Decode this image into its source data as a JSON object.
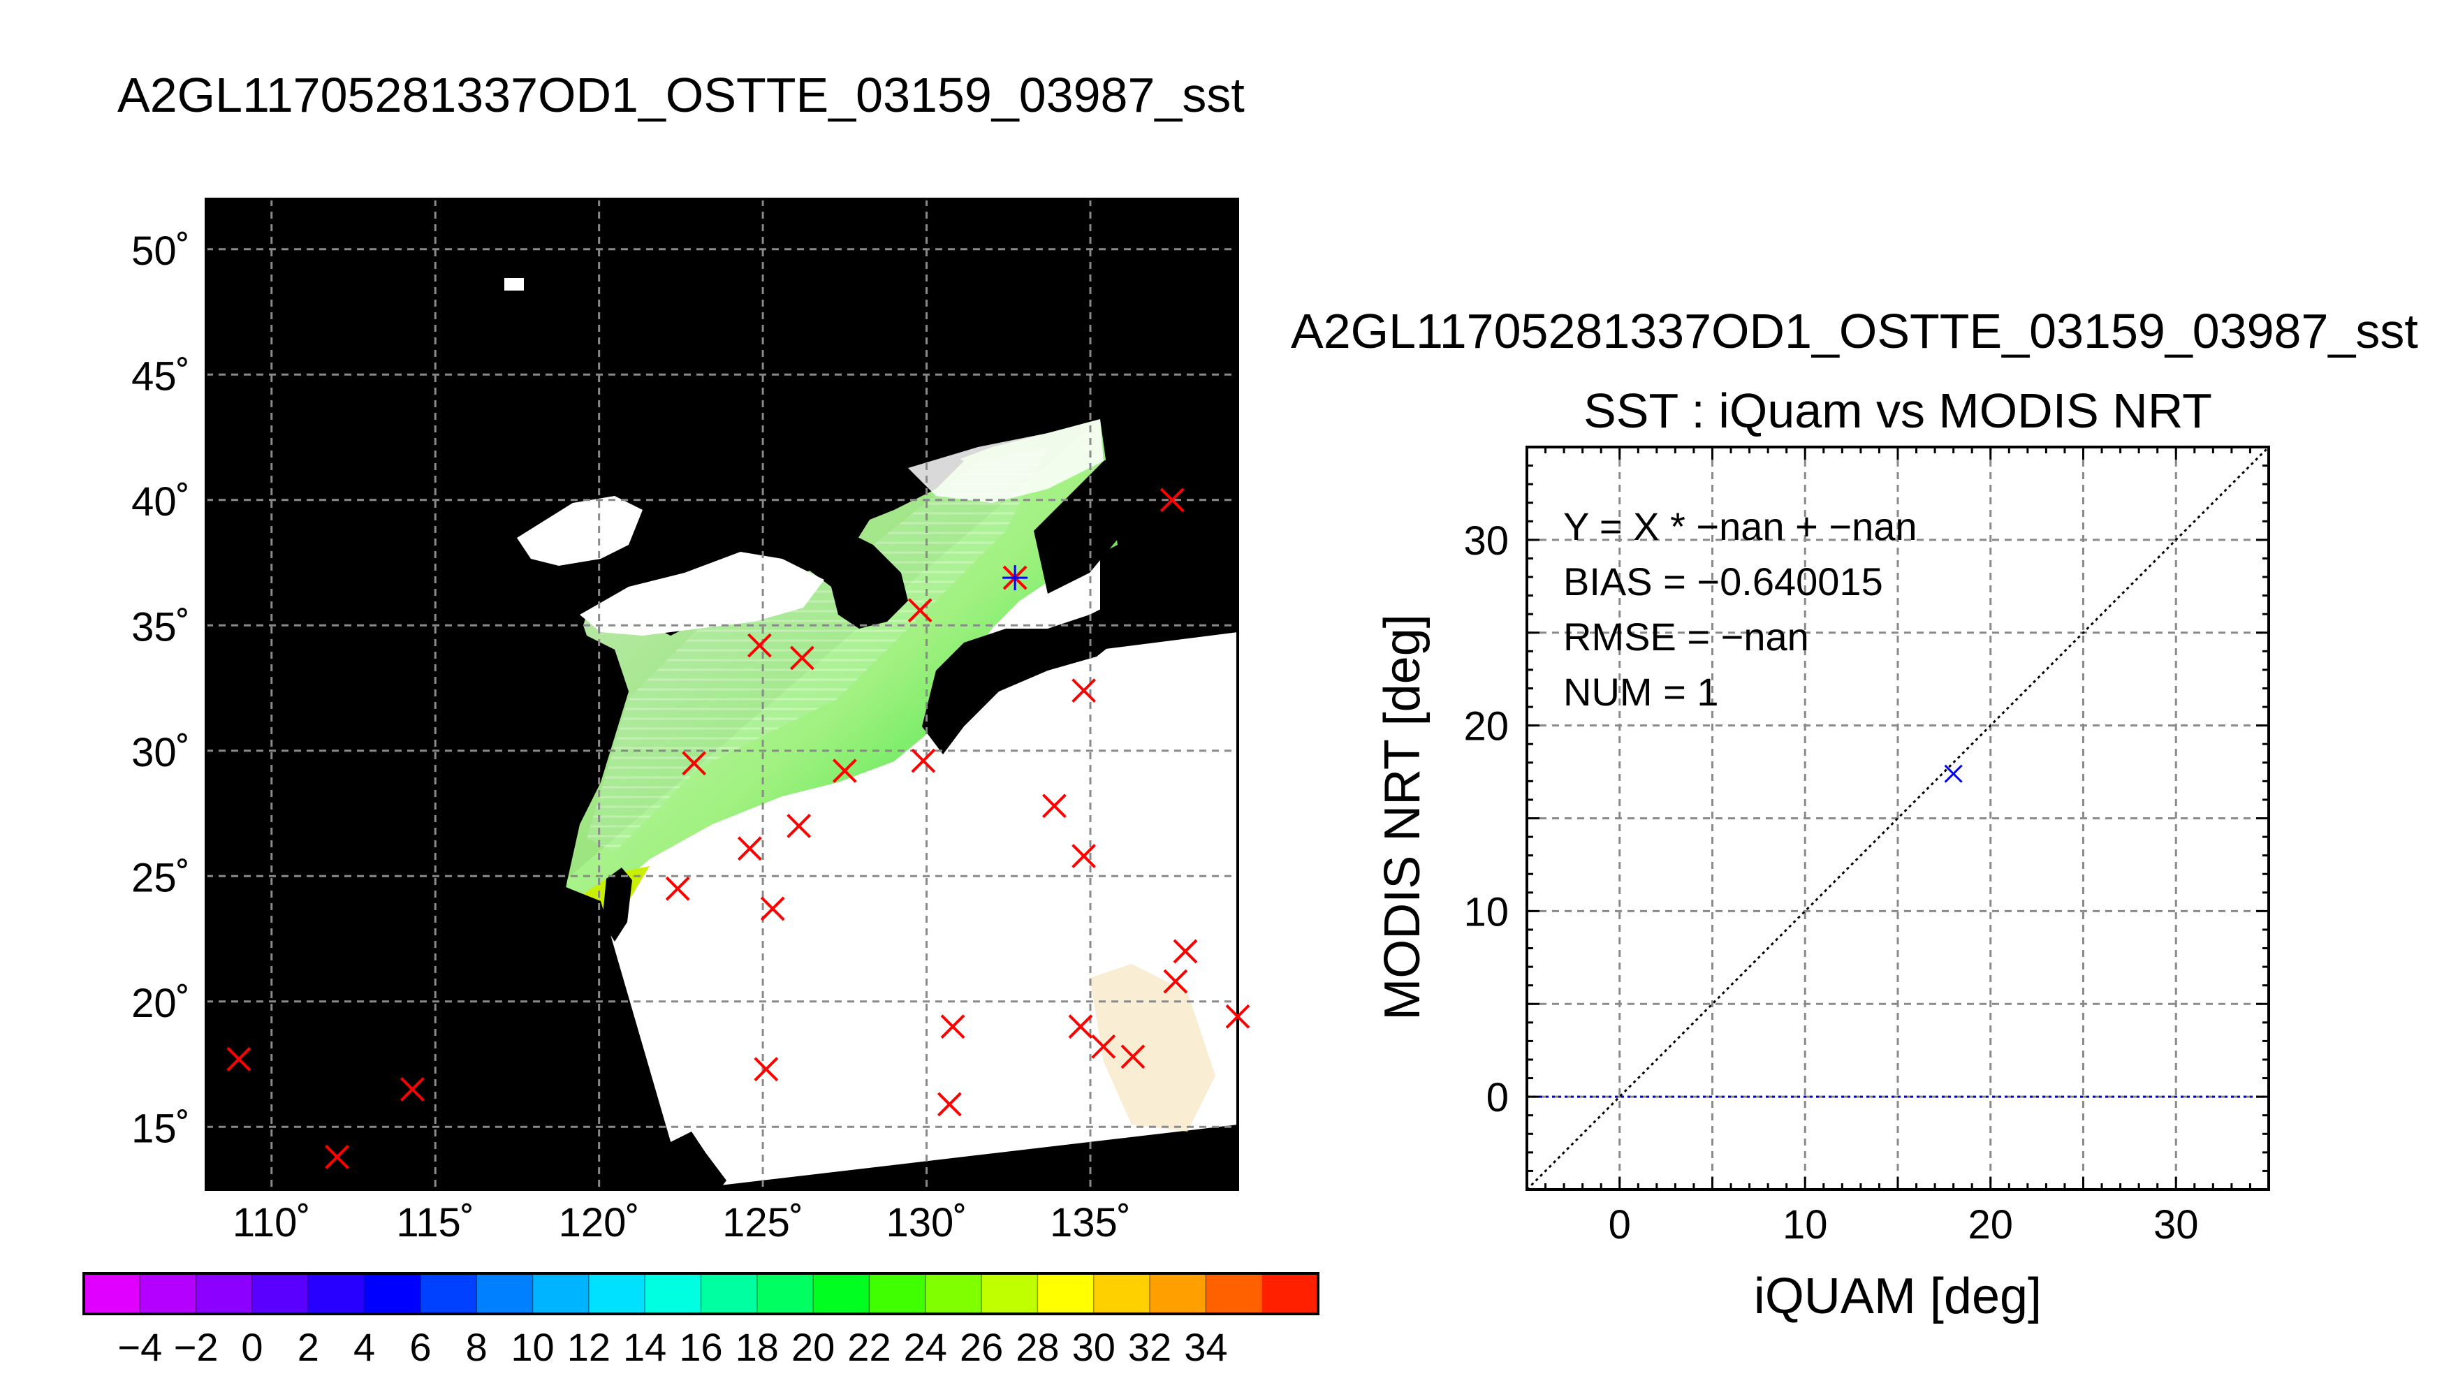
{
  "map": {
    "title": "A2GL11705281337OD1_OSTTE_03159_03987_sst",
    "lat_ticks": [
      "50˚",
      "45˚",
      "40˚",
      "35˚",
      "30˚",
      "25˚",
      "20˚",
      "15˚"
    ],
    "lon_ticks": [
      "110˚",
      "115˚",
      "120˚",
      "125˚",
      "130˚",
      "135˚"
    ],
    "colorbar_labels": [
      "−4",
      "−2",
      "0",
      "2",
      "4",
      "6",
      "8",
      "10",
      "12",
      "14",
      "16",
      "18",
      "20",
      "22",
      "24",
      "26",
      "28",
      "30",
      "32",
      "34"
    ],
    "colorbar_colors": [
      "#e000ff",
      "#b400ff",
      "#8c00ff",
      "#5a00ff",
      "#2800ff",
      "#0000ff",
      "#0040ff",
      "#0080ff",
      "#00b4ff",
      "#00e0ff",
      "#00ffe0",
      "#00ffa0",
      "#00ff60",
      "#00ff20",
      "#40ff00",
      "#80ff00",
      "#c0ff00",
      "#ffff00",
      "#ffd000",
      "#ffa000",
      "#ff6000",
      "#ff2000"
    ],
    "marker_color": "#ff0000",
    "highlight_marker_color": "#0000ff"
  },
  "chart_data": [
    {
      "type": "scatter",
      "title": "A2GL11705281337OD1_OSTTE_03159_03987_sst",
      "xlabel": "",
      "ylabel": "",
      "xlim": [
        108,
        139.5
      ],
      "ylim": [
        12.5,
        52
      ],
      "grid": true,
      "series": [
        {
          "points": [
            [
              137.5,
              40
            ],
            [
              132.7,
              36.9
            ],
            [
              129.8,
              35.6
            ],
            [
              124.9,
              34.2
            ],
            [
              126.2,
              33.7
            ],
            [
              134.8,
              32.4
            ],
            [
              122.9,
              29.5
            ],
            [
              127.5,
              29.2
            ],
            [
              129.9,
              29.6
            ],
            [
              133.9,
              27.8
            ],
            [
              126.1,
              27
            ],
            [
              124.6,
              26.1
            ],
            [
              134.8,
              25.8
            ],
            [
              122.4,
              24.5
            ],
            [
              125.3,
              23.7
            ],
            [
              137.9,
              22
            ],
            [
              137.6,
              20.8
            ],
            [
              130.8,
              19
            ],
            [
              134.7,
              19
            ],
            [
              135.4,
              18.2
            ],
            [
              136.3,
              17.8
            ],
            [
              125.1,
              17.3
            ],
            [
              130.7,
              15.9
            ],
            [
              109,
              17.7
            ],
            [
              114.3,
              16.5
            ],
            [
              112,
              13.8
            ],
            [
              139.5,
              19.4
            ]
          ]
        }
      ]
    },
    {
      "type": "scatter",
      "title": "A2GL11705281337OD1_OSTTE_03159_03987_sst",
      "subtitle": "SST : iQuam vs MODIS NRT",
      "xlabel": "iQUAM [deg]",
      "ylabel": "MODIS NRT [deg]",
      "xlim": [
        -5,
        35
      ],
      "ylim": [
        -5,
        35
      ],
      "xticks": [
        0,
        10,
        20,
        30
      ],
      "yticks": [
        0,
        10,
        20,
        30
      ],
      "grid": true,
      "annotations": [
        "Y = X * −nan + −nan",
        "BIAS = −0.640015",
        "RMSE = −nan",
        "NUM = 1"
      ],
      "series": [
        {
          "points": [
            [
              18,
              17.4
            ]
          ]
        }
      ],
      "reference_lines": [
        {
          "kind": "identity",
          "style": "dotted",
          "color": "#000000"
        },
        {
          "kind": "horizontal",
          "y": 0,
          "style": "dotted",
          "color": "#0000cc"
        }
      ]
    }
  ]
}
